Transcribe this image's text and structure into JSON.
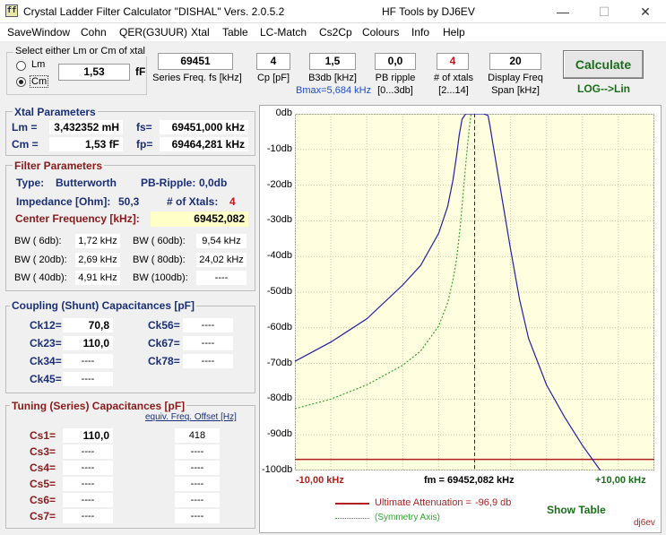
{
  "window": {
    "title": "Crystal Ladder Filter Calculator  \"DISHAL\"  Vers. 2.0.5.2",
    "title_right": "HF Tools by DJ6EV",
    "icon_text": "ff",
    "minimize": "—",
    "maximize": "☐",
    "close": "✕"
  },
  "menu": [
    "SaveWindow",
    "Cohn",
    "QER(G3UUR)",
    "Xtal",
    "Table",
    "LC-Match",
    "Cs2Cp",
    "Colours",
    "Info",
    "Help"
  ],
  "select_xtal": {
    "label": "Select either Lm or Cm of xtal",
    "opt_lm": "Lm",
    "opt_cm": "Cm",
    "selected": "Cm",
    "value": "1,53",
    "unit": "fF"
  },
  "inputs": {
    "series_freq": {
      "value": "69451",
      "caption": "Series Freq. fs [kHz]"
    },
    "cp": {
      "value": "4",
      "caption": "Cp [pF]"
    },
    "b3db": {
      "value": "1,5",
      "caption": "B3db [kHz]",
      "sub": "Bmax=5,684 kHz"
    },
    "pb_ripple": {
      "value": "0,0",
      "caption": "PB ripple",
      "sub": "[0...3db]"
    },
    "num_xtals": {
      "value": "4",
      "caption": "# of xtals",
      "sub": "[2...14]"
    },
    "display_span": {
      "value": "20",
      "caption": "Display Freq",
      "sub": "Span [kHz]"
    }
  },
  "calculate_label": "Calculate",
  "loglin_label": "LOG-->Lin",
  "xtal_params": {
    "title": "Xtal Parameters",
    "lm_label": "Lm =",
    "lm_value": "3,432352 mH",
    "fs_label": "fs=",
    "fs_value": "69451,000 kHz",
    "cm_label": "Cm =",
    "cm_value": "1,53  fF",
    "fp_label": "fp=",
    "fp_value": "69464,281 kHz"
  },
  "filter_params": {
    "title": "Filter Parameters",
    "type_label": "Type:",
    "type_value": "Butterworth",
    "pb_label": "PB-Ripple:",
    "pb_value": "0,0db",
    "imp_label": "Impedance [Ohm]:",
    "imp_value": "50,3",
    "nx_label": "# of Xtals:",
    "nx_value": "4",
    "cf_label": "Center Frequency [kHz]:",
    "cf_value": "69452,082",
    "bw": [
      {
        "l1": "BW (  6db):",
        "v1": "1,72 kHz",
        "l2": "BW ( 60db):",
        "v2": "9,54 kHz"
      },
      {
        "l1": "BW ( 20db):",
        "v1": "2,69 kHz",
        "l2": "BW ( 80db):",
        "v2": "24,02 kHz"
      },
      {
        "l1": "BW ( 40db):",
        "v1": "4,91 kHz",
        "l2": "BW (100db):",
        "v2": "----"
      }
    ]
  },
  "coupling": {
    "title": "Coupling (Shunt) Capacitances [pF]",
    "items": [
      {
        "label": "Ck12=",
        "value": "70,8"
      },
      {
        "label": "Ck23=",
        "value": "110,0"
      },
      {
        "label": "Ck34=",
        "value": "----"
      },
      {
        "label": "Ck45=",
        "value": "----"
      },
      {
        "label": "Ck56=",
        "value": "----"
      },
      {
        "label": "Ck67=",
        "value": "----"
      },
      {
        "label": "Ck78=",
        "value": "----"
      }
    ]
  },
  "tuning": {
    "title": "Tuning (Series) Capacitances [pF]",
    "offset_header": "equiv. Freq. Offset [Hz]",
    "items": [
      {
        "label": "Cs1=",
        "value": "110,0",
        "offset": "418"
      },
      {
        "label": "Cs3=",
        "value": "----",
        "offset": "----"
      },
      {
        "label": "Cs4=",
        "value": "----",
        "offset": "----"
      },
      {
        "label": "Cs5=",
        "value": "----",
        "offset": "----"
      },
      {
        "label": "Cs6=",
        "value": "----",
        "offset": "----"
      },
      {
        "label": "Cs7=",
        "value": "----",
        "offset": "----"
      }
    ]
  },
  "chart_data": {
    "type": "line",
    "y_ticks": [
      "0db",
      "-10db",
      "-20db",
      "-30db",
      "-40db",
      "-50db",
      "-60db",
      "-70db",
      "-80db",
      "-90db",
      "-100db"
    ],
    "ylim": [
      -100,
      0
    ],
    "xlim": [
      -10,
      10
    ],
    "x_left_label": "-10,00 kHz",
    "x_center_label": "fm = 69452,082 kHz",
    "x_right_label": "+10,00 kHz",
    "ultimate_attenuation_db": -96.9,
    "legend_ultimate": "Ultimate Attenuation =",
    "legend_ultimate_value": "-96,9 db",
    "legend_symmetry": "(Symmetry Axis)",
    "series": [
      {
        "color": "#1f1fa8",
        "x": [
          -10,
          -8,
          -6,
          -4,
          -3,
          -2,
          -1.5,
          -1.2,
          -1,
          -0.86,
          -0.7,
          -0.5,
          0,
          0.5,
          0.75,
          0.86,
          1,
          1.3,
          1.6,
          2,
          2.5,
          3,
          4,
          5,
          6,
          7
        ],
        "y": [
          -69.4,
          -64,
          -57.5,
          -48,
          -42.5,
          -33.5,
          -26,
          -18.5,
          -11.5,
          -6,
          -1.5,
          0,
          0,
          0,
          -0.5,
          -3.5,
          -8,
          -17,
          -26,
          -38,
          -52,
          -63,
          -76,
          -85,
          -93,
          -100
        ]
      },
      {
        "color": "#2fa52f",
        "x": [
          -10,
          -8,
          -6,
          -4,
          -3,
          -2,
          -1.5,
          -1.2,
          -1,
          -0.8,
          -0.6,
          -0.4,
          -0.3,
          -0.2
        ],
        "y": [
          -82.7,
          -80,
          -76,
          -70.5,
          -66.5,
          -59.5,
          -53,
          -46.5,
          -40.5,
          -31.5,
          -20,
          -9,
          -4,
          0
        ]
      }
    ]
  },
  "show_table_label": "Show Table",
  "signature": "dj6ev",
  "colors": {
    "plot_bg": "#ffffe0",
    "main_curve": "#1f1fa8",
    "sym_curve": "#2fa52f",
    "atten_line": "#b21f1f",
    "center_axis": "#1f1fa8",
    "calc_green": "#1a6e1a",
    "x_left_red": "#b21f1f",
    "x_right_green": "#1a6e1a"
  }
}
